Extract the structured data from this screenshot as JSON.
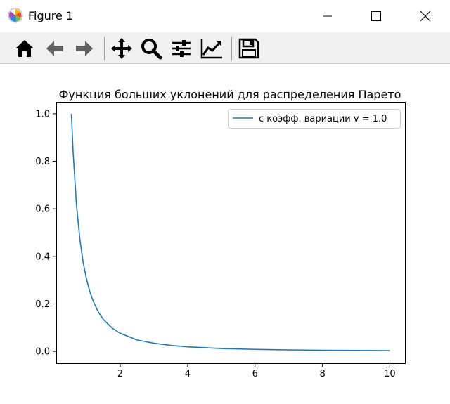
{
  "window": {
    "title": "Figure 1",
    "icons": [
      "matplotlib-logo-icon",
      "minimize-icon",
      "maximize-icon",
      "close-icon"
    ]
  },
  "toolbar": {
    "tools": [
      "home-icon",
      "back-icon",
      "forward-icon",
      "pan-icon",
      "zoom-icon",
      "configure-subplots-icon",
      "edit-axis-icon",
      "save-icon"
    ]
  },
  "chart_data": {
    "type": "line",
    "title": "Функция больших уклонений для распределения Парето",
    "xlabel": "",
    "ylabel": "",
    "xlim": [
      0.1,
      10.45
    ],
    "ylim": [
      -0.05,
      1.05
    ],
    "xticks": [
      "2",
      "4",
      "6",
      "8",
      "10"
    ],
    "yticks": [
      "0.0",
      "0.2",
      "0.4",
      "0.6",
      "0.8",
      "1.0"
    ],
    "legend_position": "top-right",
    "grid": false,
    "series": [
      {
        "name": "с коэфф. вариации v = 1.0",
        "color": "#1f77b4",
        "x": [
          0.55,
          0.6,
          0.7,
          0.8,
          0.9,
          1.0,
          1.1,
          1.2,
          1.35,
          1.5,
          1.75,
          2.0,
          2.5,
          3.0,
          3.5,
          4.0,
          5.0,
          6.0,
          7.0,
          8.0,
          9.0,
          10.0
        ],
        "y": [
          1.0,
          0.84,
          0.617,
          0.473,
          0.373,
          0.303,
          0.25,
          0.21,
          0.166,
          0.134,
          0.099,
          0.076,
          0.048,
          0.034,
          0.025,
          0.019,
          0.012,
          0.0084,
          0.0062,
          0.0047,
          0.0037,
          0.003
        ]
      }
    ]
  }
}
